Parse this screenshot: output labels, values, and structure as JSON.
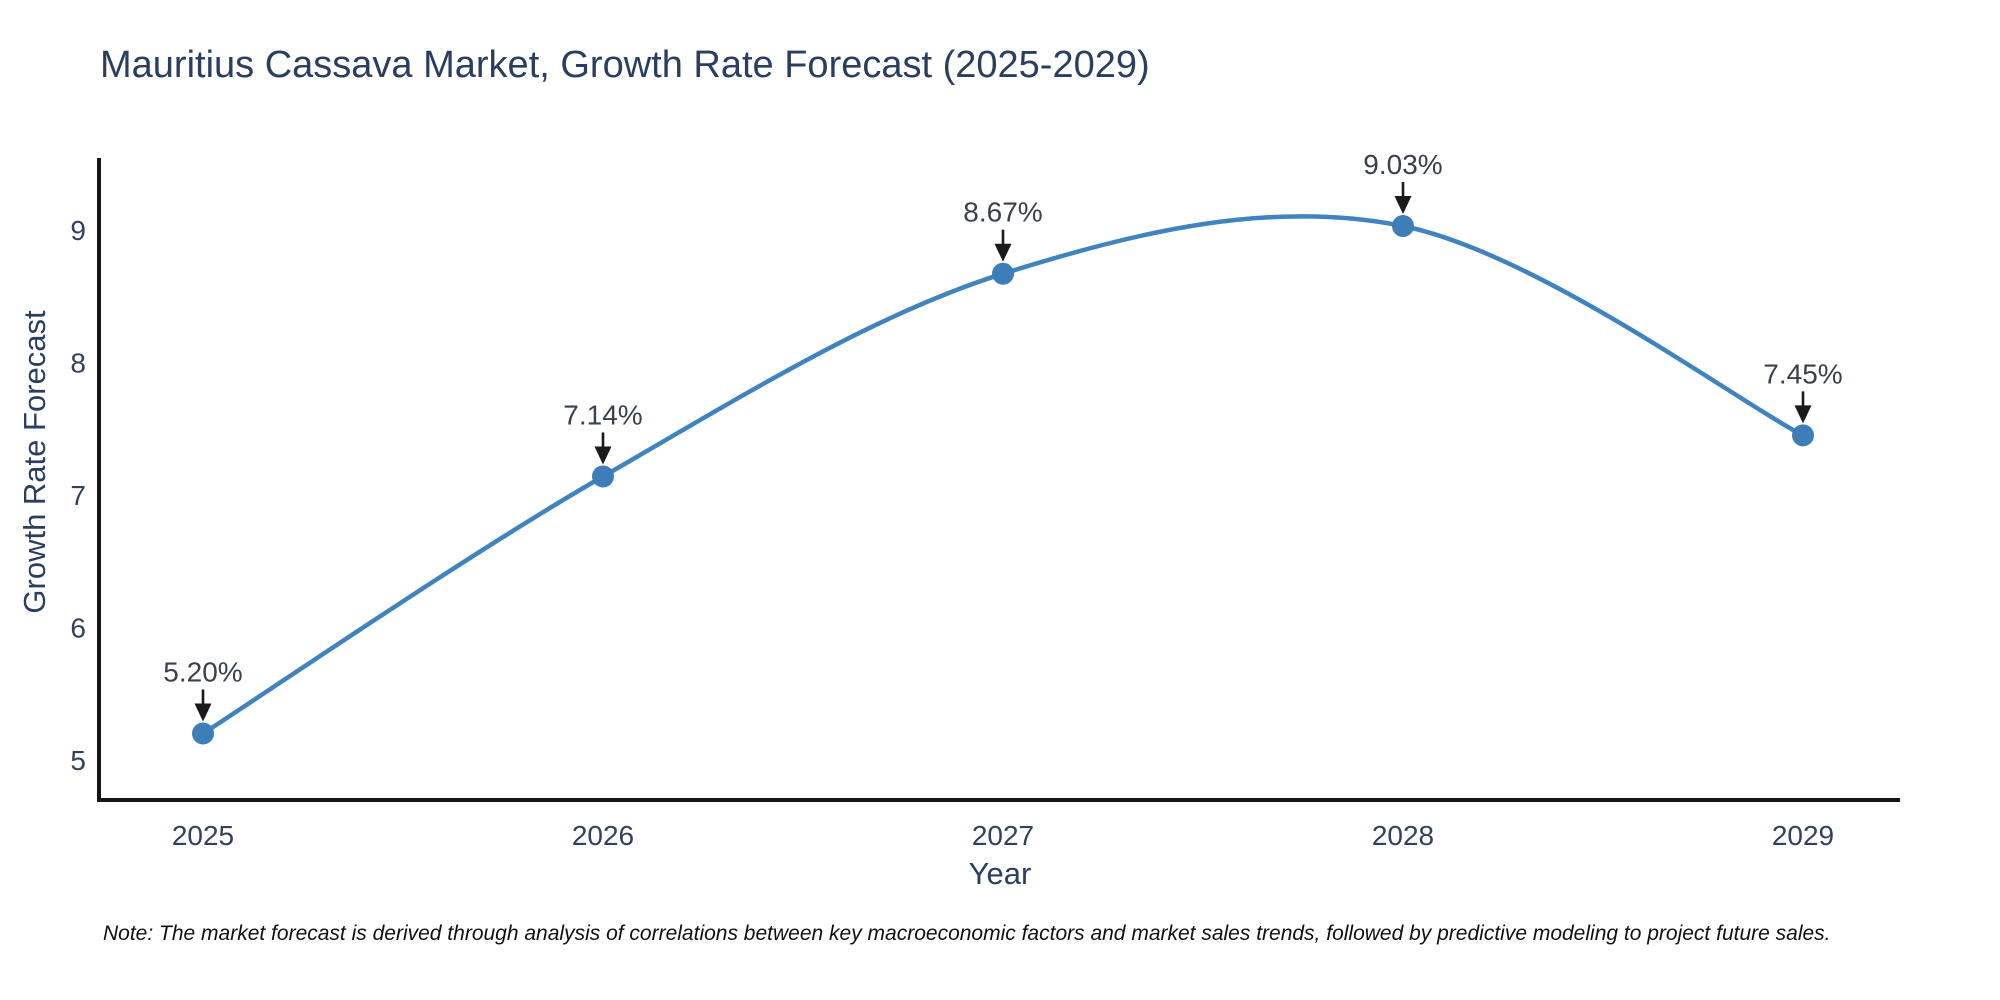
{
  "title": "Mauritius Cassava Market, Growth Rate Forecast (2025-2029)",
  "note": "Note: The market forecast is derived through analysis of correlations between key macroeconomic factors and market sales trends, followed by predictive modeling to project future sales.",
  "chart_data": {
    "type": "line",
    "title": "Mauritius Cassava Market, Growth Rate Forecast (2025-2029)",
    "xlabel": "Year",
    "ylabel": "Growth Rate Forecast",
    "x": [
      2025,
      2026,
      2027,
      2028,
      2029
    ],
    "x_ticks": [
      "2025",
      "2026",
      "2027",
      "2028",
      "2029"
    ],
    "values": [
      5.2,
      7.14,
      8.67,
      9.03,
      7.45
    ],
    "point_labels": [
      "5.20%",
      "7.14%",
      "8.67%",
      "9.03%",
      "7.45%"
    ],
    "y_ticks": [
      5,
      6,
      7,
      8,
      9
    ],
    "ylim": [
      4.7,
      9.55
    ],
    "grid": false,
    "legend_position": "none",
    "line_shape": "spline",
    "marker": "circle",
    "annotation_arrows": true,
    "colors": {
      "line": "#4083bf",
      "marker": "#3d7eb8",
      "axis": "#161616",
      "arrow": "#1a1a1a",
      "title_text": "#2a3f5f",
      "tick_text": "#33415c",
      "annotation_text": "#39414c",
      "note_text": "#101010",
      "background": "#ffffff"
    }
  }
}
